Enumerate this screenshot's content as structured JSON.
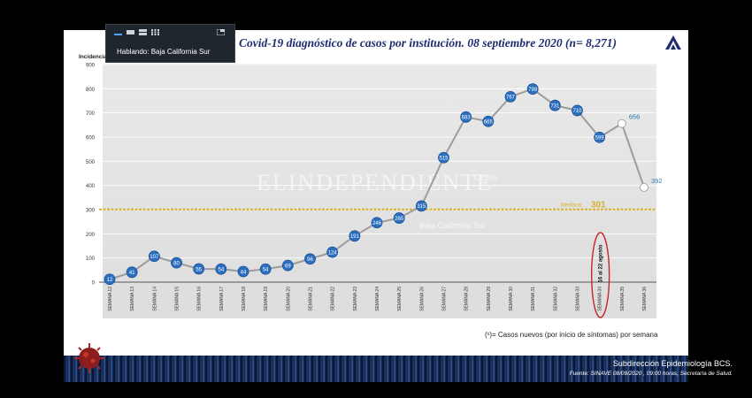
{
  "meeting": {
    "speaker_label": "Hablando: Baja California Sur"
  },
  "slide": {
    "title": "Covid-19 diagnóstico de casos por institución. 08 septiembre 2020 (n= 8,271)",
    "y_label": "Incidencia",
    "footnote": "(¹)= Casos nuevos (por inicio de síntomas) por semana",
    "footer_title": "Subdirección Epidemiología BCS.",
    "footer_source": "Fuente: SINAVE 08/09/2020 , 09:00 horas, Secretaría de Salud.",
    "watermark": "ELINDEPENDIENTE",
    "watermark_sub": "Baja California Sur",
    "watermark_diario": "Diario"
  },
  "chart_data": {
    "type": "line",
    "categories": [
      "SEMANA 12",
      "SEMANA 13",
      "SEMANA 14",
      "SEMANA 15",
      "SEMANA 16",
      "SEMANA 17",
      "SEMANA 18",
      "SEMANA 19",
      "SEMANA 20",
      "SEMANA 21",
      "SEMANA 22",
      "SEMANA 23",
      "SEMANA 24",
      "SEMANA 25",
      "SEMANA 26",
      "SEMANA 27",
      "SEMANA 28",
      "SEMANA 29",
      "SEMANA 30",
      "SEMANA 31",
      "SEMANA 32",
      "SEMANA 33",
      "SEMANA 34",
      "SEMANA 35",
      "SEMANA 36"
    ],
    "values": [
      12,
      41,
      107,
      80,
      55,
      54,
      44,
      54,
      69,
      96,
      124,
      191,
      246,
      265,
      315,
      515,
      683,
      665,
      767,
      799,
      731,
      710,
      599,
      656,
      392
    ],
    "value_labels": [
      "12",
      "41",
      "107",
      "80",
      "55",
      "54",
      "44",
      "54",
      "69",
      "96",
      "124",
      "191",
      "246",
      "265",
      "315",
      "515",
      "683",
      "665",
      "767",
      "799",
      "731",
      "710",
      "599",
      "656",
      "392"
    ],
    "ylim": [
      0,
      900
    ],
    "yticks": [
      0,
      100,
      200,
      300,
      400,
      500,
      600,
      700,
      800,
      900
    ],
    "ylabel": "Incidencia",
    "median": {
      "value": 301,
      "label": "Mediana:",
      "value_label": "301"
    },
    "annotation": "16 al 22 agosto",
    "annotation_index": 22,
    "grid": true,
    "colors": {
      "line": "#9c9c9c",
      "marker": "#2a6fc0",
      "median": "#d6b12a",
      "annotation": "#c4262a",
      "open_marker": "#ffffff",
      "open_label": "#2a7ab0"
    }
  }
}
